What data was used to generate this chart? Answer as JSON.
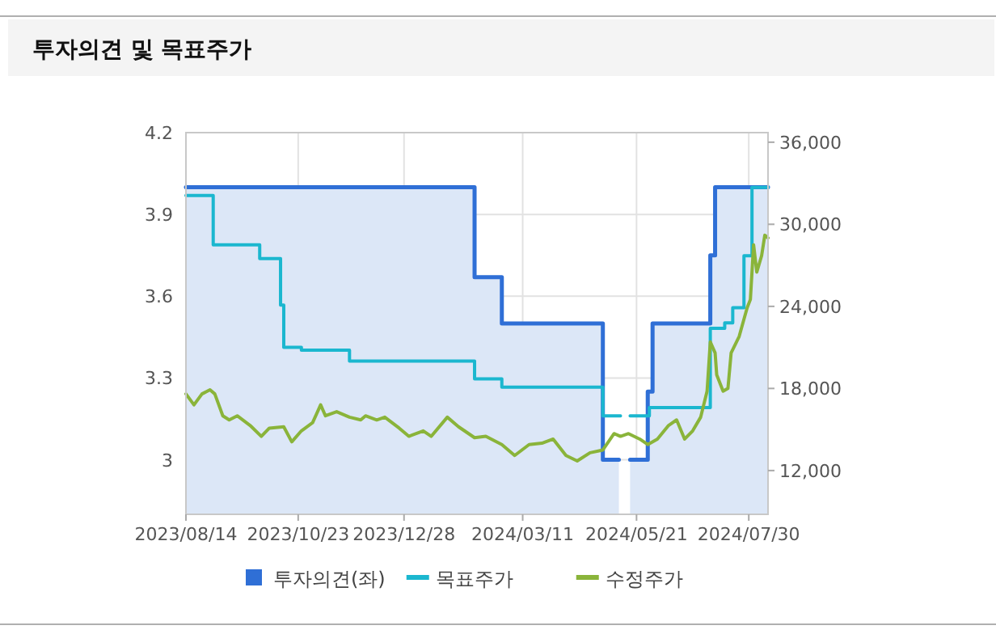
{
  "chart_data": {
    "type": "line",
    "title": "투자의견 및 목표주가",
    "xlim": [
      "2023-08-14",
      "2024-08-11"
    ],
    "xticks": [
      {
        "value": "2023-08-14",
        "label": "2023/08/14"
      },
      {
        "value": "2023-10-23",
        "label": "2023/10/23"
      },
      {
        "value": "2023-12-28",
        "label": "2023/12/28"
      },
      {
        "value": "2024-03-11",
        "label": "2024/03/11"
      },
      {
        "value": "2024-05-21",
        "label": "2024/05/21"
      },
      {
        "value": "2024-07-30",
        "label": "2024/07/30"
      }
    ],
    "ylim": [
      2.8,
      4.2
    ],
    "yticks": [
      3,
      3.3,
      3.6,
      3.9,
      4.2
    ],
    "y2lim": [
      8800,
      36700
    ],
    "y2ticks": [
      {
        "value": 12000,
        "label": "12,000"
      },
      {
        "value": 18000,
        "label": "18,000"
      },
      {
        "value": 24000,
        "label": "24,000"
      },
      {
        "value": 30000,
        "label": "30,000"
      },
      {
        "value": 36000,
        "label": "36,000"
      }
    ],
    "grid": true,
    "legend": "bottom",
    "marker": "none",
    "series": [
      {
        "name": "투자의견(좌)",
        "type": "area",
        "color": "#2f6fd6",
        "x": [
          "2023-08-14",
          "2024-02-10",
          "2024-02-10",
          "2024-02-27",
          "2024-02-27",
          "2024-04-30",
          "2024-04-30",
          "2024-05-10",
          "2024-05-17",
          "2024-05-28",
          "2024-05-28",
          "2024-05-31",
          "2024-05-31",
          "2024-07-06",
          "2024-07-06",
          "2024-07-09",
          "2024-07-09",
          "2024-08-11"
        ],
        "values": [
          4.0,
          4.0,
          3.67,
          3.67,
          3.5,
          3.5,
          3.0,
          null,
          3.0,
          3.0,
          3.25,
          3.25,
          3.5,
          3.5,
          3.75,
          3.75,
          4.0,
          4.0
        ]
      },
      {
        "name": "목표주가",
        "axis": "y2",
        "color": "#1bb7cf",
        "x": [
          "2023-08-14",
          "2023-08-31",
          "2023-08-31",
          "2023-09-29",
          "2023-09-29",
          "2023-10-12",
          "2023-10-12",
          "2023-10-14",
          "2023-10-14",
          "2023-10-25",
          "2023-10-25",
          "2023-11-24",
          "2023-11-24",
          "2024-02-10",
          "2024-02-10",
          "2024-02-27",
          "2024-02-27",
          "2024-04-30",
          "2024-04-30",
          "2024-05-11",
          "2024-05-17",
          "2024-05-29",
          "2024-05-29",
          "2024-07-06",
          "2024-07-06",
          "2024-07-15",
          "2024-07-15",
          "2024-07-20",
          "2024-07-20",
          "2024-07-27",
          "2024-07-27",
          "2024-08-01",
          "2024-08-01",
          "2024-08-11"
        ],
        "values": [
          32100,
          32100,
          28500,
          28500,
          27500,
          27500,
          24100,
          24100,
          21000,
          21000,
          20800,
          20800,
          20000,
          20000,
          18700,
          18700,
          18100,
          18100,
          16000,
          null,
          16000,
          16000,
          16600,
          16600,
          22400,
          22400,
          22800,
          22800,
          23900,
          23900,
          27700,
          27700,
          32700,
          32700
        ]
      },
      {
        "name": "수정주가",
        "axis": "y2",
        "color": "#8ab43a",
        "x": [
          "2023-08-14",
          "2023-08-19",
          "2023-08-24",
          "2023-08-29",
          "2023-09-01",
          "2023-09-06",
          "2023-09-10",
          "2023-09-15",
          "2023-09-23",
          "2023-09-30",
          "2023-10-05",
          "2023-10-14",
          "2023-10-19",
          "2023-10-25",
          "2023-11-01",
          "2023-11-06",
          "2023-11-09",
          "2023-11-16",
          "2023-11-24",
          "2023-12-01",
          "2023-12-04",
          "2023-12-11",
          "2023-12-16",
          "2023-12-25",
          "2023-12-31",
          "2024-01-09",
          "2024-01-14",
          "2024-01-24",
          "2024-01-31",
          "2024-02-10",
          "2024-02-17",
          "2024-02-27",
          "2024-03-06",
          "2024-03-15",
          "2024-03-23",
          "2024-03-30",
          "2024-04-07",
          "2024-04-14",
          "2024-04-22",
          "2024-04-30",
          "2024-05-07",
          "2024-05-11",
          "2024-05-16",
          "2024-05-23",
          "2024-05-28",
          "2024-06-03",
          "2024-06-10",
          "2024-06-15",
          "2024-06-20",
          "2024-06-25",
          "2024-06-30",
          "2024-07-04",
          "2024-07-06",
          "2024-07-09",
          "2024-07-10",
          "2024-07-14",
          "2024-07-17",
          "2024-07-19",
          "2024-07-24",
          "2024-07-29",
          "2024-07-31",
          "2024-08-02",
          "2024-08-04",
          "2024-08-07",
          "2024-08-09",
          "2024-08-11"
        ],
        "values": [
          17600,
          16800,
          17600,
          17900,
          17600,
          16000,
          15700,
          16000,
          15300,
          14500,
          15100,
          15200,
          14100,
          14900,
          15500,
          16800,
          16000,
          16300,
          15900,
          15700,
          16000,
          15700,
          15900,
          15100,
          14500,
          14900,
          14500,
          15900,
          15200,
          14400,
          14500,
          13900,
          13100,
          13900,
          14000,
          14300,
          13100,
          12700,
          13300,
          13500,
          14700,
          14500,
          14700,
          14300,
          13900,
          14300,
          15300,
          15700,
          14300,
          14900,
          15900,
          17800,
          21400,
          20600,
          19000,
          17800,
          18000,
          20600,
          21800,
          23900,
          24500,
          28500,
          26500,
          27700,
          29200,
          29000
        ]
      }
    ]
  }
}
